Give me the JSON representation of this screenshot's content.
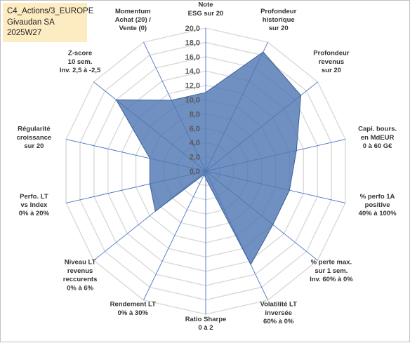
{
  "header": {
    "line1": "C4_Actions/3_EUROPE",
    "line2": "Givaudan SA",
    "line3": "2025W27"
  },
  "colors": {
    "fill": "#4f77b3",
    "stroke": "#3d5f94",
    "grid": "#d9d9d9",
    "spoke": "#4472c4",
    "title_bg": "#fdebc2"
  },
  "chart_data": {
    "type": "radar",
    "rmin": 0,
    "rmax": 20,
    "tick_step": 2,
    "tick_labels": [
      "0,0",
      "2,0",
      "4,0",
      "6,0",
      "8,0",
      "10,0",
      "12,0",
      "14,0",
      "16,0",
      "18,0",
      "20,0"
    ],
    "axes": [
      {
        "label": [
          "Note",
          "ESG sur 20"
        ],
        "value": 11
      },
      {
        "label": [
          "Profondeur",
          "historique",
          "sur 20"
        ],
        "value": 18.5
      },
      {
        "label": [
          "Profondeur",
          "revenus",
          "sur 20"
        ],
        "value": 17
      },
      {
        "label": [
          "Capi. bours.",
          "en MdEUR",
          "0 à 60 G€"
        ],
        "value": 13
      },
      {
        "label": [
          "% perfo 1A",
          "positive",
          "40% à 100%"
        ],
        "value": 12
      },
      {
        "label": [
          "% perte max.",
          "sur 1 sem.",
          "Inv. 60% à 0%"
        ],
        "value": 12
      },
      {
        "label": [
          "Volatilité LT",
          "inversée",
          "60% à 0%"
        ],
        "value": 14.5
      },
      {
        "label": [
          "Ratio Sharpe",
          "0 à 2"
        ],
        "value": 1
      },
      {
        "label": [
          "Rendement LT",
          "0% à 30%"
        ],
        "value": 0.5
      },
      {
        "label": [
          "Niveau LT",
          "revenus",
          "reccurents",
          "0% à 6%"
        ],
        "value": 9
      },
      {
        "label": [
          "Perfo. LT",
          "vs Index",
          "0% à 20%"
        ],
        "value": 8
      },
      {
        "label": [
          "Régularité",
          "croissance",
          "sur 20"
        ],
        "value": 8
      },
      {
        "label": [
          "Z-score",
          "10 sem.",
          "Inv. 2,5 à -2,5"
        ],
        "value": 16
      },
      {
        "label": [
          "Momentum",
          "Achat (20) /",
          "Vente (0)"
        ],
        "value": 11
      }
    ]
  }
}
